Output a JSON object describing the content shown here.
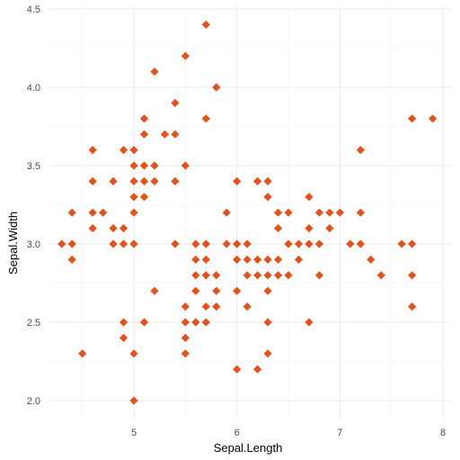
{
  "chart_data": {
    "type": "scatter",
    "xlabel": "Sepal.Length",
    "ylabel": "Sepal.Width",
    "xlim": [
      4.3,
      7.9
    ],
    "ylim": [
      2.0,
      4.4
    ],
    "x_ticks": [
      5,
      6,
      7,
      8
    ],
    "y_ticks": [
      2.0,
      2.5,
      3.0,
      3.5,
      4.0,
      4.5
    ],
    "x_tick_labels": [
      "5",
      "6",
      "7",
      "8"
    ],
    "y_tick_labels": [
      "2.0",
      "2.5",
      "3.0",
      "3.5",
      "4.0",
      "4.5"
    ],
    "grid": true,
    "marker": "diamond",
    "color": "#E8501A",
    "points": [
      [
        4.3,
        3.0
      ],
      [
        4.4,
        3.0
      ],
      [
        4.4,
        3.2
      ],
      [
        4.4,
        2.9
      ],
      [
        4.5,
        2.3
      ],
      [
        4.6,
        3.6
      ],
      [
        4.6,
        3.4
      ],
      [
        4.6,
        3.2
      ],
      [
        4.6,
        3.1
      ],
      [
        4.7,
        3.2
      ],
      [
        4.8,
        3.4
      ],
      [
        4.8,
        3.1
      ],
      [
        4.8,
        3.0
      ],
      [
        4.9,
        3.6
      ],
      [
        4.9,
        3.1
      ],
      [
        4.9,
        3.0
      ],
      [
        4.9,
        2.5
      ],
      [
        4.9,
        2.4
      ],
      [
        5.0,
        3.6
      ],
      [
        5.0,
        3.5
      ],
      [
        5.0,
        3.4
      ],
      [
        5.0,
        3.3
      ],
      [
        5.0,
        3.2
      ],
      [
        5.0,
        3.0
      ],
      [
        5.0,
        2.3
      ],
      [
        5.0,
        2.0
      ],
      [
        5.1,
        3.8
      ],
      [
        5.1,
        3.7
      ],
      [
        5.1,
        3.5
      ],
      [
        5.1,
        3.4
      ],
      [
        5.1,
        3.3
      ],
      [
        5.1,
        2.5
      ],
      [
        5.2,
        4.1
      ],
      [
        5.2,
        3.5
      ],
      [
        5.2,
        3.4
      ],
      [
        5.2,
        2.7
      ],
      [
        5.3,
        3.7
      ],
      [
        5.4,
        3.9
      ],
      [
        5.4,
        3.7
      ],
      [
        5.4,
        3.4
      ],
      [
        5.4,
        3.0
      ],
      [
        5.5,
        4.2
      ],
      [
        5.5,
        3.5
      ],
      [
        5.5,
        2.6
      ],
      [
        5.5,
        2.5
      ],
      [
        5.5,
        2.4
      ],
      [
        5.5,
        2.3
      ],
      [
        5.6,
        3.0
      ],
      [
        5.6,
        2.9
      ],
      [
        5.6,
        2.8
      ],
      [
        5.6,
        2.7
      ],
      [
        5.6,
        2.5
      ],
      [
        5.7,
        4.4
      ],
      [
        5.7,
        3.8
      ],
      [
        5.7,
        3.0
      ],
      [
        5.7,
        2.9
      ],
      [
        5.7,
        2.8
      ],
      [
        5.7,
        2.6
      ],
      [
        5.7,
        2.5
      ],
      [
        5.8,
        4.0
      ],
      [
        5.8,
        2.8
      ],
      [
        5.8,
        2.7
      ],
      [
        5.8,
        2.6
      ],
      [
        5.9,
        3.2
      ],
      [
        5.9,
        3.0
      ],
      [
        6.0,
        3.4
      ],
      [
        6.0,
        3.0
      ],
      [
        6.0,
        2.9
      ],
      [
        6.0,
        2.7
      ],
      [
        6.0,
        2.2
      ],
      [
        6.1,
        3.0
      ],
      [
        6.1,
        2.9
      ],
      [
        6.1,
        2.8
      ],
      [
        6.1,
        2.6
      ],
      [
        6.2,
        3.4
      ],
      [
        6.2,
        2.9
      ],
      [
        6.2,
        2.8
      ],
      [
        6.2,
        2.2
      ],
      [
        6.3,
        3.4
      ],
      [
        6.3,
        3.3
      ],
      [
        6.3,
        2.9
      ],
      [
        6.3,
        2.8
      ],
      [
        6.3,
        2.7
      ],
      [
        6.3,
        2.5
      ],
      [
        6.3,
        2.3
      ],
      [
        6.4,
        3.2
      ],
      [
        6.4,
        3.1
      ],
      [
        6.4,
        2.9
      ],
      [
        6.4,
        2.8
      ],
      [
        6.5,
        3.2
      ],
      [
        6.5,
        3.0
      ],
      [
        6.5,
        2.8
      ],
      [
        6.6,
        3.0
      ],
      [
        6.6,
        2.9
      ],
      [
        6.7,
        3.3
      ],
      [
        6.7,
        3.1
      ],
      [
        6.7,
        3.0
      ],
      [
        6.7,
        2.5
      ],
      [
        6.8,
        3.2
      ],
      [
        6.8,
        3.0
      ],
      [
        6.8,
        2.8
      ],
      [
        6.9,
        3.2
      ],
      [
        6.9,
        3.1
      ],
      [
        7.0,
        3.2
      ],
      [
        7.1,
        3.0
      ],
      [
        7.2,
        3.6
      ],
      [
        7.2,
        3.2
      ],
      [
        7.2,
        3.0
      ],
      [
        7.3,
        2.9
      ],
      [
        7.4,
        2.8
      ],
      [
        7.6,
        3.0
      ],
      [
        7.7,
        3.8
      ],
      [
        7.7,
        3.0
      ],
      [
        7.7,
        2.8
      ],
      [
        7.7,
        2.6
      ],
      [
        7.9,
        3.8
      ]
    ]
  }
}
